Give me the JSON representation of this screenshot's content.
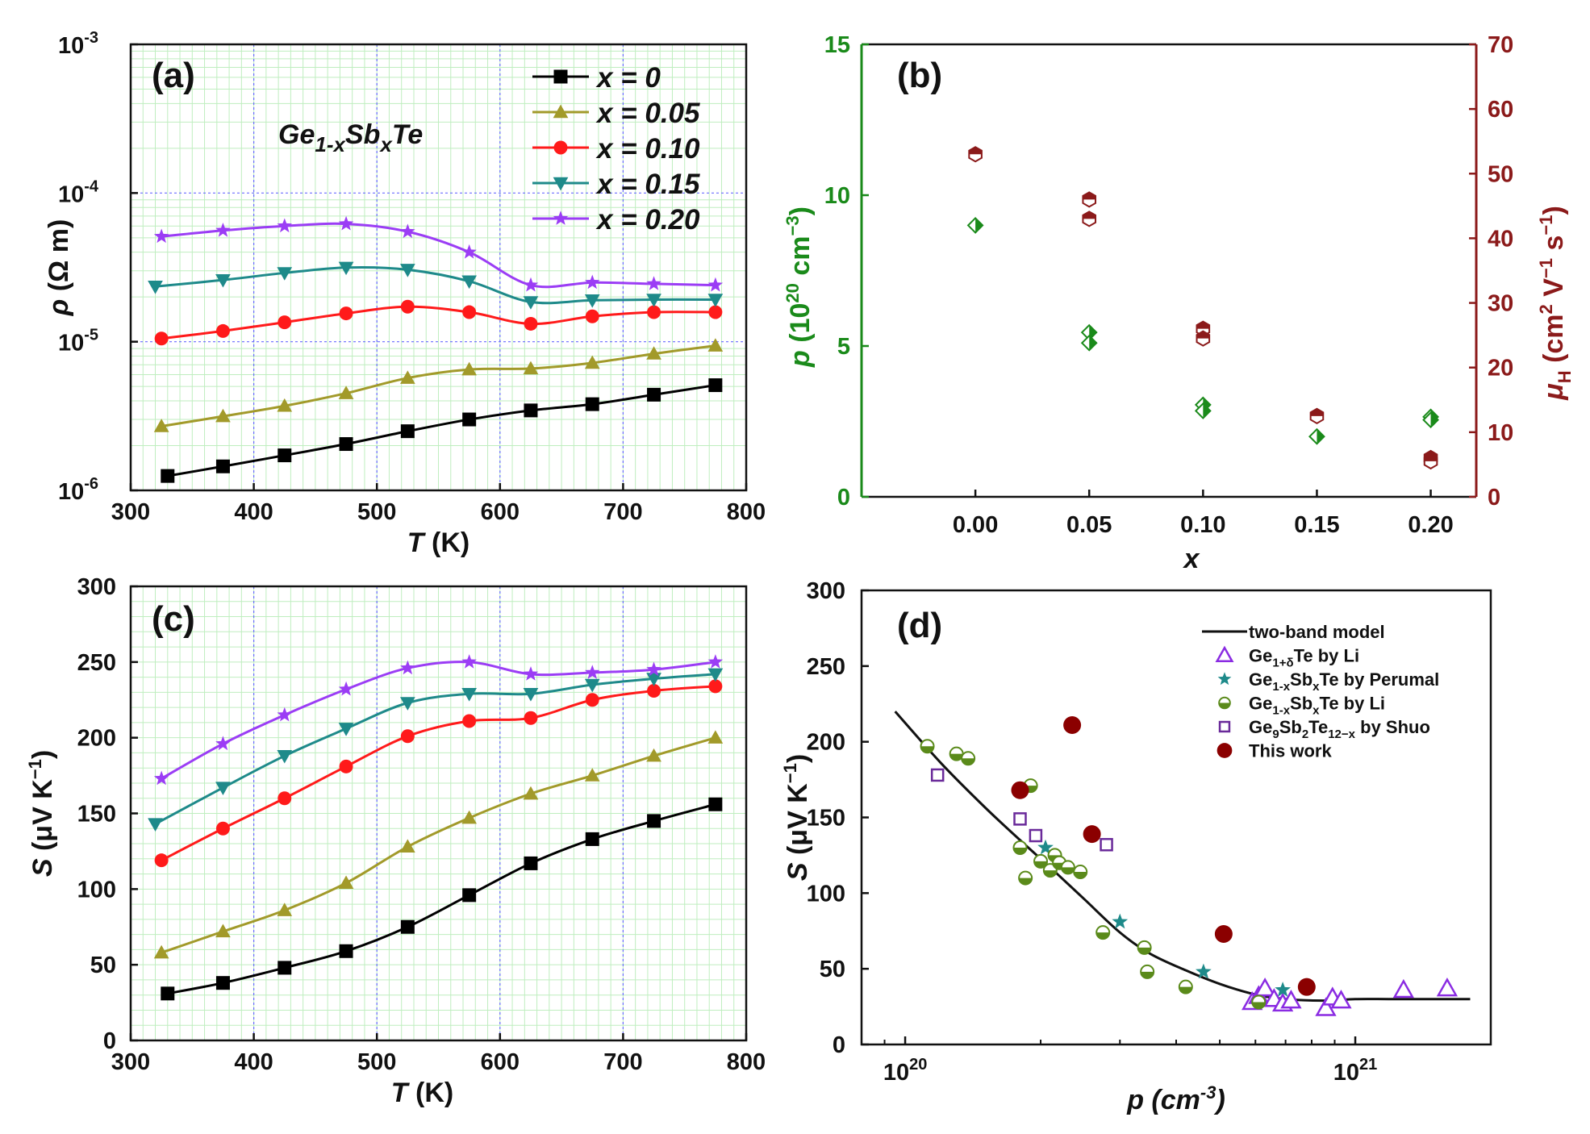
{
  "chart_data": [
    {
      "id": "a",
      "type": "line",
      "panel_label": "(a)",
      "title": "Ge1-xSbxTe",
      "title_parts": {
        "base1": "Ge",
        "sub1": "1-x",
        "base2": "Sb",
        "sub2": "x",
        "base3": "Te"
      },
      "xlabel": {
        "sym": "T",
        "rest": " (K)"
      },
      "ylabel": {
        "sym": "ρ",
        "rest": " (Ω m)"
      },
      "xlim": [
        300,
        800
      ],
      "ylim_log": [
        1e-06,
        0.001
      ],
      "yscale": "log",
      "xticks": [
        "300",
        "400",
        "500",
        "600",
        "700",
        "800"
      ],
      "yticks": [
        {
          "base": "10",
          "exp": "-6",
          "v": 1e-06
        },
        {
          "base": "10",
          "exp": "-5",
          "v": 1e-05
        },
        {
          "base": "10",
          "exp": "-4",
          "v": 0.0001
        },
        {
          "base": "10",
          "exp": "-3",
          "v": 0.001
        }
      ],
      "legend_position": "top-right",
      "series": [
        {
          "name": "x = 0",
          "color": "#000000",
          "marker": "square",
          "x": [
            330,
            375,
            425,
            475,
            525,
            575,
            625,
            675,
            725,
            775
          ],
          "y": [
            1.25e-06,
            1.45e-06,
            1.72e-06,
            2.05e-06,
            2.5e-06,
            3e-06,
            3.45e-06,
            3.8e-06,
            4.4e-06,
            5.1e-06
          ]
        },
        {
          "name": "x = 0.05",
          "color": "#a29a2a",
          "marker": "triangle-up",
          "x": [
            325,
            375,
            425,
            475,
            525,
            575,
            625,
            675,
            725,
            775
          ],
          "y": [
            2.7e-06,
            3.15e-06,
            3.7e-06,
            4.5e-06,
            5.7e-06,
            6.5e-06,
            6.6e-06,
            7.2e-06,
            8.3e-06,
            9.4e-06
          ]
        },
        {
          "name": "x = 0.10",
          "color": "#ff1a1a",
          "marker": "circle",
          "x": [
            325,
            375,
            425,
            475,
            525,
            575,
            625,
            675,
            725,
            775
          ],
          "y": [
            1.05e-05,
            1.18e-05,
            1.35e-05,
            1.55e-05,
            1.72e-05,
            1.58e-05,
            1.32e-05,
            1.48e-05,
            1.58e-05,
            1.58e-05
          ]
        },
        {
          "name": "x = 0.15",
          "color": "#1e8a8a",
          "marker": "triangle-down",
          "x": [
            320,
            375,
            425,
            475,
            525,
            575,
            625,
            675,
            725,
            775
          ],
          "y": [
            2.35e-05,
            2.6e-05,
            2.9e-05,
            3.15e-05,
            3.05e-05,
            2.55e-05,
            1.85e-05,
            1.9e-05,
            1.92e-05,
            1.92e-05
          ]
        },
        {
          "name": "x = 0.20",
          "color": "#9b3df5",
          "marker": "star",
          "x": [
            325,
            375,
            425,
            475,
            525,
            575,
            625,
            675,
            725,
            775
          ],
          "y": [
            5.1e-05,
            5.6e-05,
            6e-05,
            6.2e-05,
            5.5e-05,
            4e-05,
            2.4e-05,
            2.5e-05,
            2.45e-05,
            2.4e-05
          ]
        }
      ]
    },
    {
      "id": "b",
      "type": "scatter",
      "panel_label": "(b)",
      "xlabel": {
        "sym": "x",
        "rest": ""
      },
      "ylabel_left": {
        "sym": "p",
        "rest": " (10",
        "sup": "20",
        "rest2": " cm",
        "sup2": "−3",
        "rest3": ")"
      },
      "ylabel_right": {
        "sym": "μ",
        "sub": "H",
        "rest": " (cm",
        "sup": "2",
        "rest2": " V",
        "sup2": "−1",
        "rest3": " s",
        "sup3": "−1",
        "rest4": ")"
      },
      "xlim": [
        -0.05,
        0.22
      ],
      "ylim_left": [
        0,
        15
      ],
      "ylim_right": [
        0,
        70
      ],
      "xticks": [
        "0.00",
        "0.05",
        "0.10",
        "0.15",
        "0.20"
      ],
      "yticks_left": [
        "0",
        "5",
        "10",
        "15"
      ],
      "yticks_right": [
        "0",
        "10",
        "20",
        "30",
        "40",
        "50",
        "60",
        "70"
      ],
      "left_color": "#1a8a1a",
      "right_color": "#8b1a1a",
      "series": [
        {
          "name": "p",
          "axis": "left",
          "color": "#1a8a1a",
          "marker": "diamond-half",
          "x": [
            0.0,
            0.05,
            0.05,
            0.1,
            0.1,
            0.15,
            0.2,
            0.2
          ],
          "y": [
            9.0,
            5.45,
            5.1,
            3.05,
            2.85,
            2.0,
            2.65,
            2.55
          ]
        },
        {
          "name": "μH",
          "axis": "right",
          "color": "#8b1a1a",
          "marker": "hexagon-half",
          "x": [
            0.0,
            0.05,
            0.05,
            0.1,
            0.1,
            0.15,
            0.2,
            0.2
          ],
          "y": [
            53,
            46,
            43,
            26,
            24.5,
            12.5,
            6,
            5.5
          ]
        }
      ]
    },
    {
      "id": "c",
      "type": "line",
      "panel_label": "(c)",
      "xlabel": {
        "sym": "T",
        "rest": " (K)"
      },
      "ylabel": {
        "sym": "S",
        "rest": " (μV K",
        "sup": "−1",
        "rest2": ")"
      },
      "xlim": [
        300,
        800
      ],
      "ylim": [
        0,
        300
      ],
      "xticks": [
        "300",
        "400",
        "500",
        "600",
        "700",
        "800"
      ],
      "yticks": [
        "0",
        "50",
        "100",
        "150",
        "200",
        "250",
        "300"
      ],
      "series": [
        {
          "name": "x = 0",
          "color": "#000000",
          "marker": "square",
          "x": [
            330,
            375,
            425,
            475,
            525,
            575,
            625,
            675,
            725,
            775
          ],
          "y": [
            31,
            38,
            48,
            59,
            75,
            96,
            117,
            133,
            145,
            156
          ]
        },
        {
          "name": "x = 0.05",
          "color": "#a29a2a",
          "marker": "triangle-up",
          "x": [
            325,
            375,
            425,
            475,
            525,
            575,
            625,
            675,
            725,
            775
          ],
          "y": [
            58,
            72,
            86,
            104,
            128,
            147,
            163,
            175,
            188,
            200
          ]
        },
        {
          "name": "x = 0.10",
          "color": "#ff1a1a",
          "marker": "circle",
          "x": [
            325,
            375,
            425,
            475,
            525,
            575,
            625,
            675,
            725,
            775
          ],
          "y": [
            119,
            140,
            160,
            181,
            201,
            211,
            213,
            225,
            231,
            234
          ]
        },
        {
          "name": "x = 0.15",
          "color": "#1e8a8a",
          "marker": "triangle-down",
          "x": [
            320,
            375,
            425,
            475,
            525,
            575,
            625,
            675,
            725,
            775
          ],
          "y": [
            143,
            167,
            188,
            206,
            223,
            229,
            229,
            235,
            239,
            242
          ]
        },
        {
          "name": "x = 0.20",
          "color": "#9b3df5",
          "marker": "star",
          "x": [
            325,
            375,
            425,
            475,
            525,
            575,
            625,
            675,
            725,
            775
          ],
          "y": [
            173,
            196,
            215,
            232,
            246,
            250,
            242,
            243,
            245,
            250
          ]
        }
      ]
    },
    {
      "id": "d",
      "type": "scatter",
      "panel_label": "(d)",
      "xlabel": {
        "sym": "p",
        "rest": " (cm",
        "sup": "-3",
        "rest2": ")"
      },
      "ylabel": {
        "sym": "S",
        "rest": " (μV K",
        "sup": "−1",
        "rest2": ")"
      },
      "xscale": "log",
      "xlim_log": [
        8e+19,
        2e+21
      ],
      "ylim": [
        0,
        300
      ],
      "xticks": [
        {
          "base": "10",
          "exp": "20",
          "v": 1e+20
        },
        {
          "base": "10",
          "exp": "21",
          "v": 1e+21
        }
      ],
      "yticks": [
        "0",
        "50",
        "100",
        "150",
        "200",
        "250",
        "300"
      ],
      "legend_position": "top-right",
      "model": {
        "name": "two-band model",
        "color": "#111111",
        "x": [
          9.5e+19,
          1.2e+20,
          1.5e+20,
          1.8e+20,
          2.1e+20,
          2.5e+20,
          3e+20,
          3.5e+20,
          4.2e+20,
          5e+20,
          6e+20,
          7e+20,
          8.5e+20,
          1e+21,
          1.2e+21,
          1.5e+21,
          1.8e+21
        ],
        "y": [
          220,
          186,
          157,
          135,
          117,
          96,
          74,
          60,
          49,
          40,
          33,
          30,
          29,
          30,
          30,
          30,
          30
        ]
      },
      "series": [
        {
          "name": "Ge1+δTe by Li",
          "label": {
            "a": "Ge",
            "sub": "1+δ",
            "b": "Te by Li"
          },
          "color": "#8a2be2",
          "marker": "triangle-open",
          "x": [
            5.9e+20,
            6.1e+20,
            6.3e+20,
            6.6e+20,
            6.9e+20,
            7.2e+20,
            8.6e+20,
            8.9e+20,
            9.3e+20,
            1.28e+21,
            1.6e+21
          ],
          "y": [
            28,
            32,
            37,
            30,
            27,
            29,
            24,
            31,
            29,
            36,
            37
          ]
        },
        {
          "name": "Ge1-xSbxTe by Perumal",
          "label": {
            "a": "Ge",
            "sub": "1-x",
            "b": "Sb",
            "sub2": "x",
            "c": "Te by Perumal"
          },
          "color": "#1e8a8a",
          "marker": "star",
          "x": [
            2.05e+20,
            3e+20,
            4.6e+20,
            6.9e+20
          ],
          "y": [
            130,
            81,
            48,
            36
          ]
        },
        {
          "name": "Ge1-xSbxTe by Li",
          "label": {
            "a": "Ge",
            "sub": "1-x",
            "b": "Sb",
            "sub2": "x",
            "c": "Te by Li"
          },
          "color": "#5a8a1a",
          "marker": "circle-half",
          "x": [
            1.12e+20,
            1.3e+20,
            1.38e+20,
            1.8e+20,
            1.85e+20,
            1.9e+20,
            2e+20,
            2.1e+20,
            2.15e+20,
            2.2e+20,
            2.3e+20,
            2.45e+20,
            2.75e+20,
            3.4e+20,
            3.45e+20,
            4.2e+20,
            6.1e+20
          ],
          "y": [
            197,
            192,
            189,
            130,
            110,
            171,
            121,
            115,
            125,
            120,
            117,
            114,
            74,
            64,
            48,
            38,
            28
          ]
        },
        {
          "name": "Ge9Sb2Te12-x by Shuo",
          "label": {
            "a": "Ge",
            "sub": "9",
            "b": "Sb",
            "sub2": "2",
            "c": "Te",
            "sub3": "12−x",
            "d": " by Shuo"
          },
          "color": "#6a2a9a",
          "marker": "square-open",
          "x": [
            1.18e+20,
            1.8e+20,
            1.95e+20,
            2.8e+20
          ],
          "y": [
            178,
            149,
            138,
            132
          ]
        },
        {
          "name": "This work",
          "label": {
            "a": "This work"
          },
          "color": "#8b0000",
          "marker": "circle-filled",
          "x": [
            1.8e+20,
            2.35e+20,
            2.6e+20,
            5.1e+20,
            7.8e+20
          ],
          "y": [
            168,
            211,
            139,
            73,
            38
          ]
        }
      ]
    }
  ]
}
